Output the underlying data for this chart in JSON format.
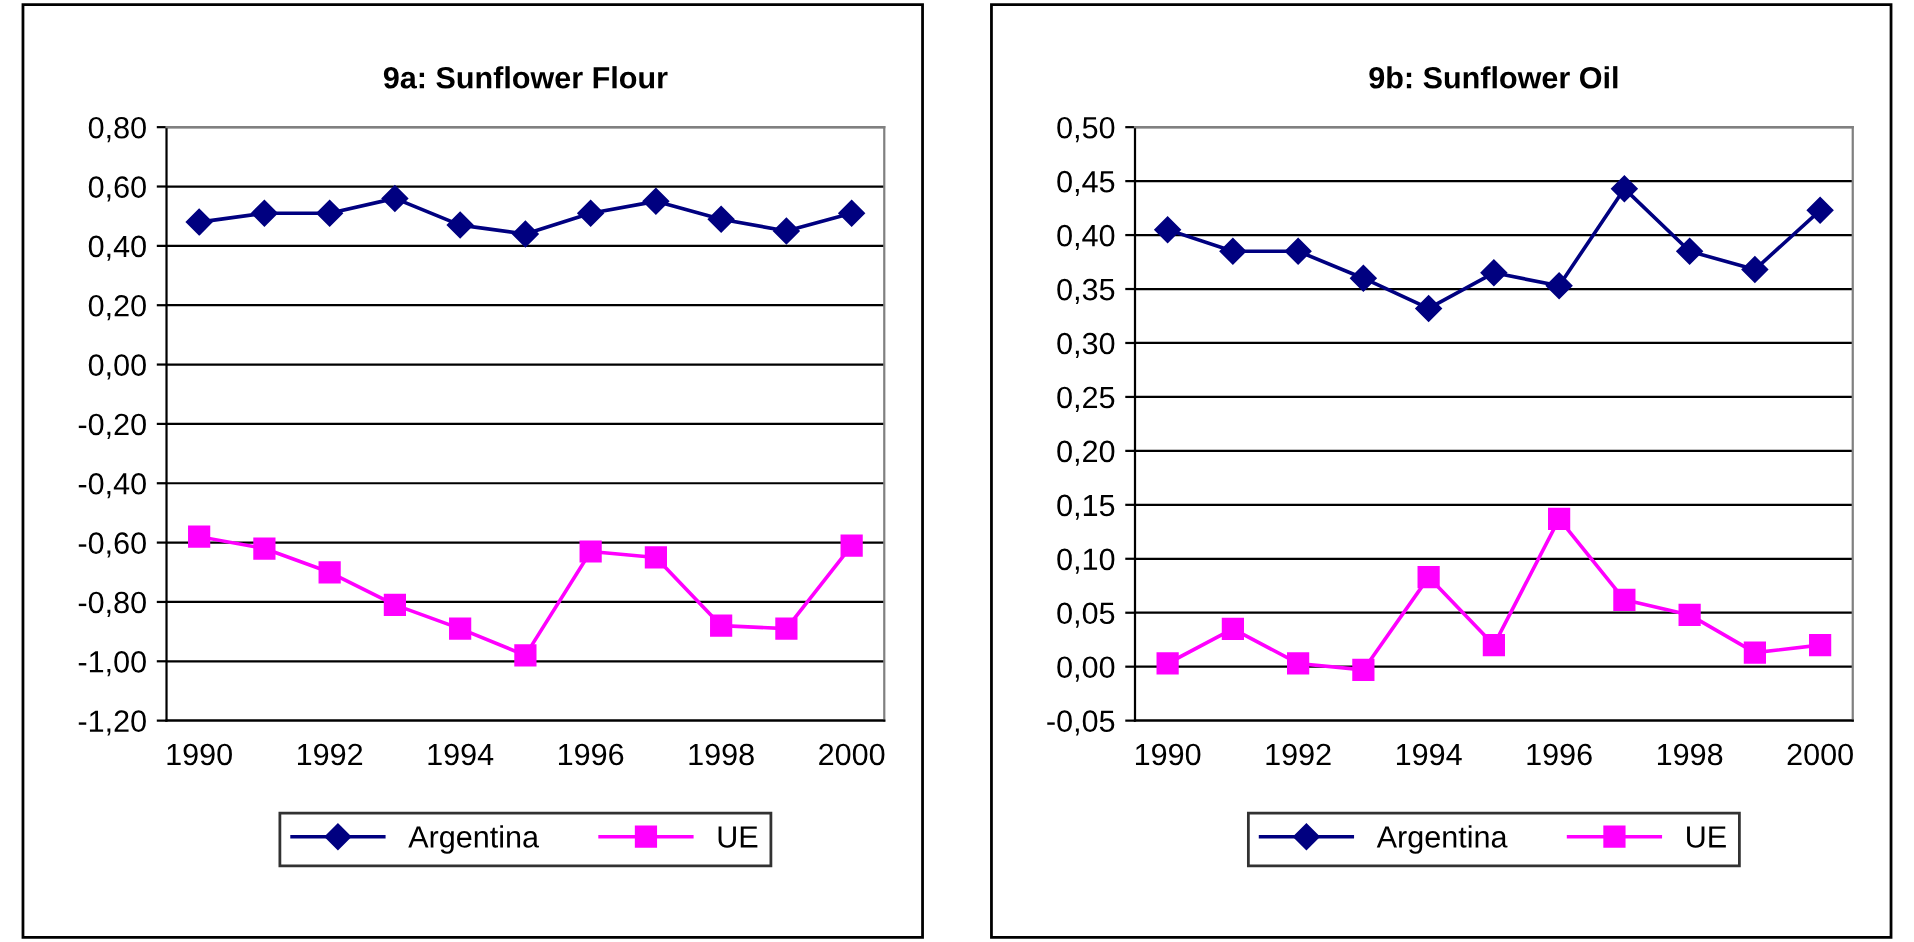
{
  "chart_data": [
    {
      "type": "line",
      "title": "9a: Sunflower Flour",
      "categories": [
        "1990",
        null,
        "1992",
        null,
        "1994",
        null,
        "1996",
        null,
        "1998",
        null,
        "2000"
      ],
      "series": [
        {
          "name": "Argentina",
          "color": "#000080",
          "marker": "diamond",
          "values": [
            0.48,
            0.51,
            0.51,
            0.56,
            0.47,
            0.44,
            0.51,
            0.55,
            0.49,
            0.45,
            0.51
          ]
        },
        {
          "name": "UE",
          "color": "#ff00ff",
          "marker": "square",
          "values": [
            -0.58,
            -0.62,
            -0.7,
            -0.81,
            -0.89,
            -0.98,
            -0.63,
            -0.65,
            -0.88,
            -0.89,
            -0.61
          ]
        }
      ],
      "ylim": [
        -1.2,
        0.8
      ],
      "yticks": [
        {
          "value": -1.2,
          "label": "-1,20"
        },
        {
          "value": -1.0,
          "label": "-1,00"
        },
        {
          "value": -0.8,
          "label": "-0,80"
        },
        {
          "value": -0.6,
          "label": "-0,60"
        },
        {
          "value": -0.4,
          "label": "-0,40"
        },
        {
          "value": -0.2,
          "label": "-0,20"
        },
        {
          "value": 0,
          "label": "0,00"
        },
        {
          "value": 0.2,
          "label": "0,20"
        },
        {
          "value": 0.4,
          "label": "0,40"
        },
        {
          "value": 0.6,
          "label": "0,60"
        },
        {
          "value": 0.8,
          "label": "0,80"
        }
      ],
      "grid": "y",
      "legend": "bottom"
    },
    {
      "type": "line",
      "title": "9b: Sunflower Oil",
      "categories": [
        "1990",
        null,
        "1992",
        null,
        "1994",
        null,
        "1996",
        null,
        "1998",
        null,
        "2000"
      ],
      "series": [
        {
          "name": "Argentina",
          "color": "#000080",
          "marker": "diamond",
          "values": [
            0.405,
            0.385,
            0.385,
            0.36,
            0.332,
            0.365,
            0.353,
            0.443,
            0.385,
            0.368,
            0.423
          ]
        },
        {
          "name": "UE",
          "color": "#ff00ff",
          "marker": "square",
          "values": [
            0.003,
            0.035,
            0.003,
            -0.003,
            0.083,
            0.02,
            0.137,
            0.062,
            0.048,
            0.013,
            0.02
          ]
        }
      ],
      "ylim": [
        -0.05,
        0.5
      ],
      "yticks": [
        {
          "value": -0.05,
          "label": "-0,05"
        },
        {
          "value": 0,
          "label": "0,00"
        },
        {
          "value": 0.05,
          "label": "0,05"
        },
        {
          "value": 0.1,
          "label": "0,10"
        },
        {
          "value": 0.15,
          "label": "0,15"
        },
        {
          "value": 0.2,
          "label": "0,20"
        },
        {
          "value": 0.25,
          "label": "0,25"
        },
        {
          "value": 0.3,
          "label": "0,30"
        },
        {
          "value": 0.35,
          "label": "0,35"
        },
        {
          "value": 0.4,
          "label": "0,40"
        },
        {
          "value": 0.45,
          "label": "0,45"
        },
        {
          "value": 0.5,
          "label": "0,50"
        }
      ],
      "grid": "y",
      "legend": "bottom"
    }
  ]
}
